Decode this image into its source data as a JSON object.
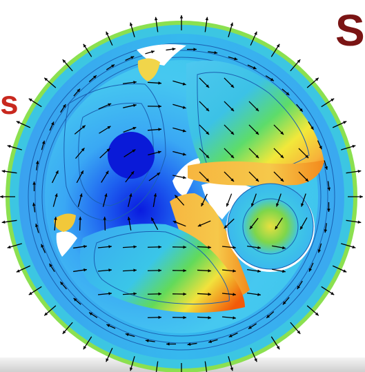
{
  "heading_fragment": "S",
  "side_fragment": "s",
  "colors": {
    "heading": "#7a1414",
    "side_text": "#c8281e",
    "contour_low": "#0a2ad8",
    "contour_mid": "#27c3ee",
    "contour_high": "#f45a0a",
    "vectors": "#000000"
  },
  "plot": {
    "type": "contour plot with vector arrows",
    "color_scale": [
      "blue",
      "cyan",
      "green",
      "yellow",
      "orange"
    ],
    "legend": "none"
  }
}
